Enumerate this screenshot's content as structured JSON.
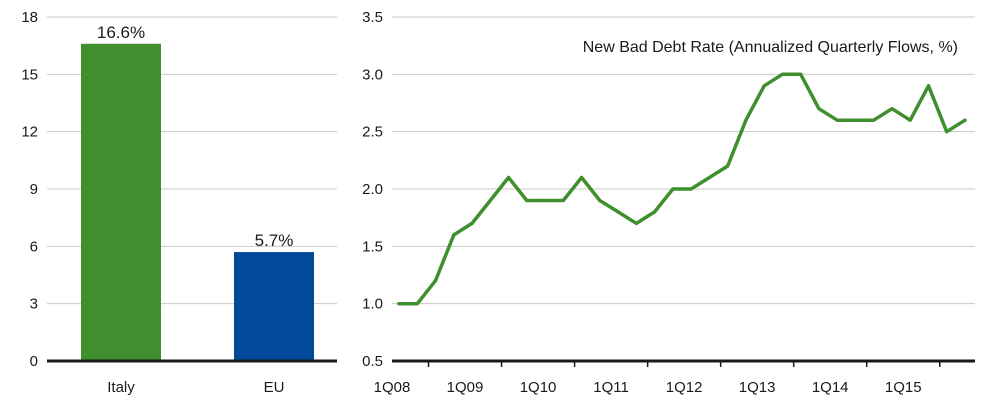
{
  "chart_data": [
    {
      "type": "bar",
      "categories": [
        "Italy",
        "EU"
      ],
      "values": [
        16.6,
        5.7
      ],
      "data_labels": [
        "16.6%",
        "5.7%"
      ],
      "colors": [
        "#3f8f2f",
        "#004a99"
      ],
      "ylim": [
        0,
        18
      ],
      "yticks": [
        "0",
        "3",
        "6",
        "9",
        "12",
        "15",
        "18"
      ],
      "grid": true
    },
    {
      "type": "line",
      "title": "New Bad Debt Rate (Annualized Quarterly Flows, %)",
      "x": [
        "1Q08",
        "2Q08",
        "3Q08",
        "4Q08",
        "1Q09",
        "2Q09",
        "3Q09",
        "4Q09",
        "1Q10",
        "2Q10",
        "3Q10",
        "4Q10",
        "1Q11",
        "2Q11",
        "3Q11",
        "4Q11",
        "1Q12",
        "2Q12",
        "3Q12",
        "4Q12",
        "1Q13",
        "2Q13",
        "3Q13",
        "4Q13",
        "1Q14",
        "2Q14",
        "3Q14",
        "4Q14",
        "1Q15",
        "2Q15",
        "3Q15",
        "4Q15"
      ],
      "series": [
        {
          "values": [
            1.0,
            1.0,
            1.2,
            1.6,
            1.7,
            1.9,
            2.1,
            1.9,
            1.9,
            1.9,
            2.1,
            1.9,
            1.8,
            1.7,
            1.8,
            2.0,
            2.0,
            2.1,
            2.2,
            2.6,
            2.9,
            3.0,
            3.0,
            2.7,
            2.6,
            2.6,
            2.6,
            2.7,
            2.6,
            2.9,
            2.5,
            2.6
          ],
          "color": "#3f8f2f"
        }
      ],
      "xticks": [
        "1Q08",
        "1Q09",
        "1Q10",
        "1Q11",
        "1Q12",
        "1Q13",
        "1Q14",
        "1Q15"
      ],
      "yticks": [
        "0.5",
        "1.0",
        "1.5",
        "2.0",
        "2.5",
        "3.0",
        "3.5"
      ],
      "ylim": [
        0.5,
        3.5
      ],
      "grid": true
    }
  ]
}
